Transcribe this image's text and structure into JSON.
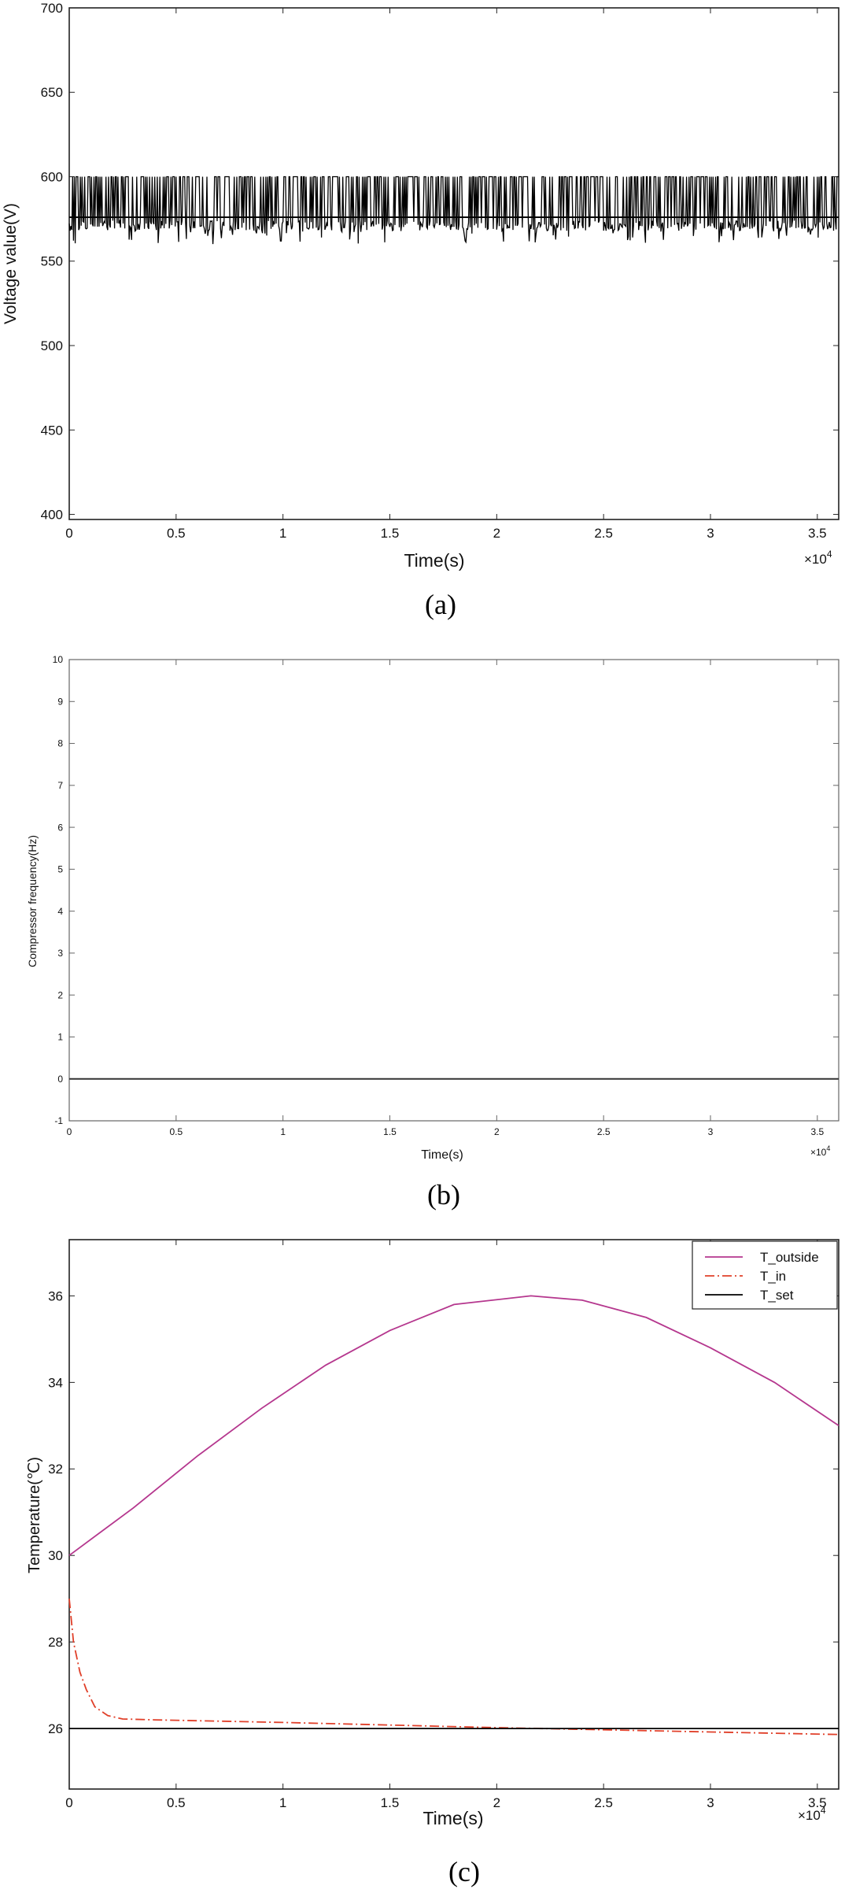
{
  "panel_labels": [
    "(a)",
    "(b)",
    "(c)"
  ],
  "chart_data": [
    {
      "type": "line",
      "xlabel": "Time(s)",
      "ylabel": "Voltage value(V)",
      "x_multiplier": "×10",
      "x_multiplier_exp": "4",
      "xlim": [
        0,
        36000
      ],
      "ylim": [
        397,
        700
      ],
      "xticks": [
        "0",
        "0.5",
        "1",
        "1.5",
        "2",
        "2.5",
        "3",
        "3.5"
      ],
      "yticks": [
        "400",
        "450",
        "500",
        "550",
        "600",
        "650",
        "700"
      ],
      "grid": false,
      "series": [
        {
          "values_description": "",
          "baseline": 576,
          "max": 600,
          "min": 560,
          "color": "#000000"
        }
      ]
    },
    {
      "type": "line",
      "xlabel": "Time(s)",
      "ylabel": "Compressor frequency(Hz)",
      "x_multiplier": "×10",
      "x_multiplier_exp": "4",
      "xlim": [
        0,
        36000
      ],
      "ylim": [
        -1,
        10
      ],
      "xticks": [
        "0",
        "0.5",
        "1",
        "1.5",
        "2",
        "2.5",
        "3",
        "3.5"
      ],
      "yticks": [
        "-1",
        "0",
        "1",
        "2",
        "3",
        "4",
        "5",
        "6",
        "7",
        "8",
        "9",
        "10"
      ],
      "grid": false,
      "series": [
        {
          "x": [
            0,
            36000
          ],
          "y": [
            0,
            0
          ],
          "color": "#333333"
        }
      ]
    },
    {
      "type": "line",
      "xlabel": "Time(s)",
      "ylabel": "Temperature(℃)",
      "x_multiplier": "×10",
      "x_multiplier_exp": "4",
      "xlim": [
        0,
        36000
      ],
      "ylim": [
        24.6,
        37.3
      ],
      "xticks": [
        "0",
        "0.5",
        "1",
        "1.5",
        "2",
        "2.5",
        "3",
        "3.5"
      ],
      "yticks": [
        "26",
        "28",
        "30",
        "32",
        "34",
        "36"
      ],
      "grid": false,
      "legend": "top-right",
      "series": [
        {
          "name": "T_outside",
          "color": "#b5378e",
          "style": "solid",
          "x": [
            0,
            3000,
            6000,
            9000,
            12000,
            15000,
            18000,
            21600,
            24000,
            27000,
            30000,
            33000,
            36000
          ],
          "y": [
            30.0,
            31.1,
            32.3,
            33.4,
            34.4,
            35.2,
            35.8,
            36.0,
            35.9,
            35.5,
            34.8,
            34.0,
            33.0
          ]
        },
        {
          "name": "T_in",
          "color": "#e0402a",
          "style": "dashdot",
          "x": [
            0,
            200,
            500,
            800,
            1200,
            1800,
            2500,
            4000,
            6000,
            10000,
            15000,
            20000,
            25000,
            30000,
            36000
          ],
          "y": [
            29.0,
            28.0,
            27.3,
            26.9,
            26.5,
            26.3,
            26.22,
            26.2,
            26.18,
            26.14,
            26.08,
            26.02,
            25.97,
            25.92,
            25.86
          ]
        },
        {
          "name": "T_set",
          "color": "#000000",
          "style": "solid",
          "x": [
            0,
            36000
          ],
          "y": [
            26,
            26
          ]
        }
      ]
    }
  ]
}
